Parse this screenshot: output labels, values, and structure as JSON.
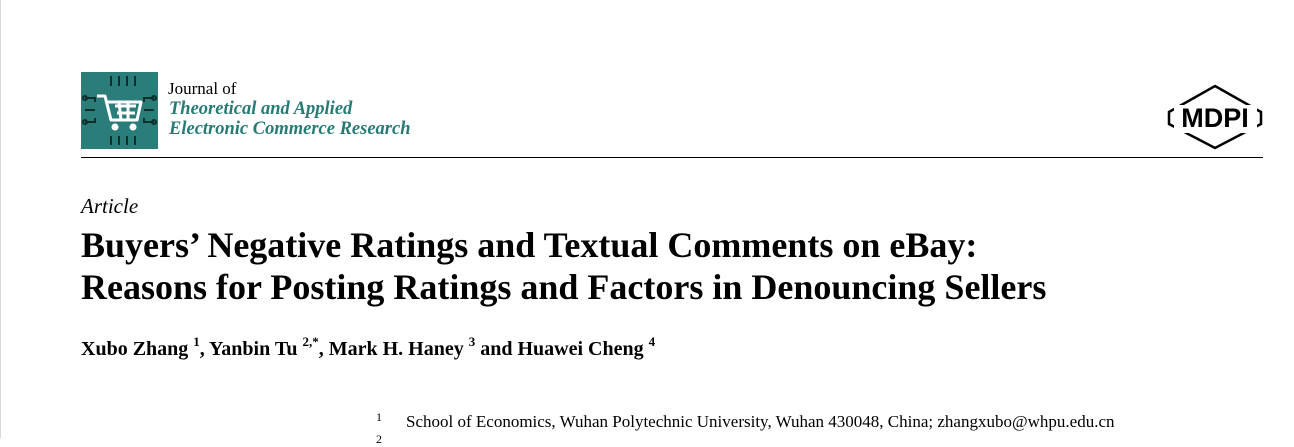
{
  "header": {
    "journal_prefix": "Journal of",
    "journal_name_line1": "Theoretical and Applied",
    "journal_name_line2": "Electronic Commerce Research",
    "journal_logo_icon": "shopping-cart-circuit-icon",
    "publisher_logo_text": "MDPI",
    "brand_color": "#2b7d7a"
  },
  "article": {
    "type": "Article",
    "title_line1": "Buyers’ Negative Ratings and Textual Comments on eBay:",
    "title_line2": "Reasons for Posting Ratings and Factors in Denouncing Sellers",
    "authors": [
      {
        "name": "Xubo Zhang",
        "sup": "1"
      },
      {
        "name": "Yanbin Tu",
        "sup": "2,*"
      },
      {
        "name": "Mark H. Haney",
        "sup": "3"
      },
      {
        "name": "Huawei Cheng",
        "sup": "4"
      }
    ],
    "author_separators": [
      ", ",
      ", ",
      " and "
    ],
    "affiliations": [
      {
        "num": "1",
        "text": "School of Economics, Wuhan Polytechnic University, Wuhan 430048, China; zhangxubo@whpu.edu.cn"
      },
      {
        "num": "2",
        "text": ""
      }
    ]
  }
}
